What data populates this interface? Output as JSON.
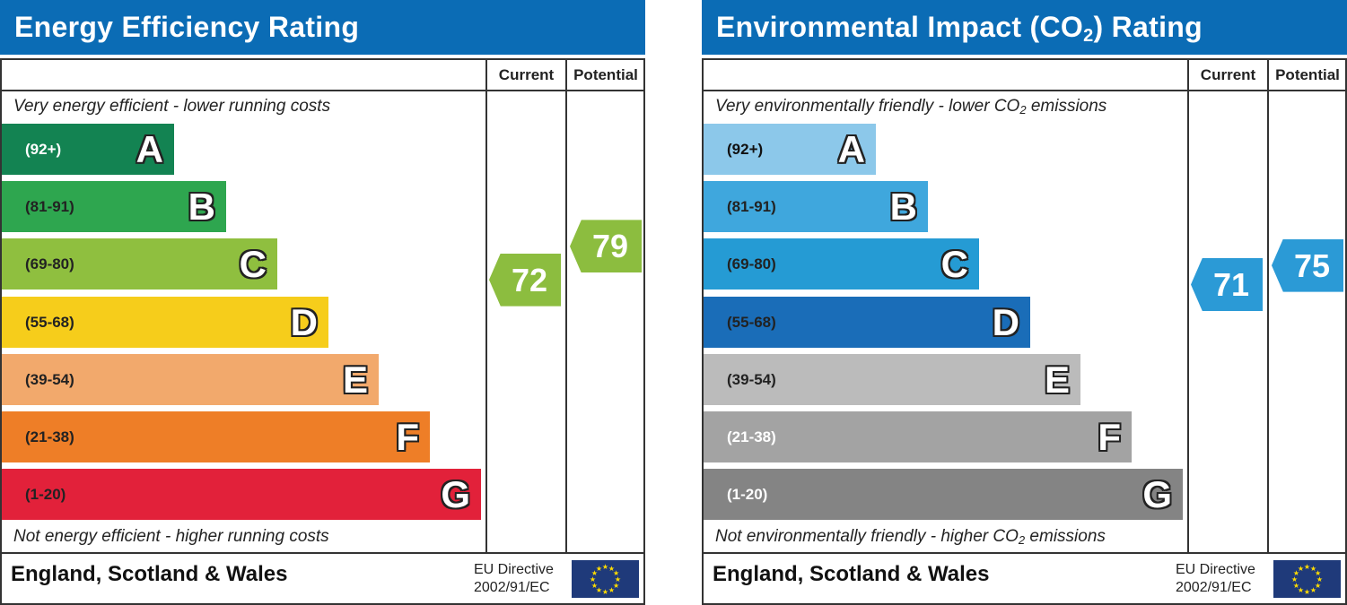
{
  "chart_data": [
    {
      "type": "bar",
      "title": "Energy Efficiency Rating",
      "columns": [
        "Current",
        "Potential"
      ],
      "top_note": "Very energy efficient - lower running costs",
      "bottom_note": "Not energy efficient - higher running costs",
      "bands": [
        {
          "range": "(92+)",
          "letter": "A",
          "color": "#138352",
          "text_color": "#ffffff"
        },
        {
          "range": "(81-91)",
          "letter": "B",
          "color": "#2ea64f",
          "text_color": "#222222"
        },
        {
          "range": "(69-80)",
          "letter": "C",
          "color": "#8fbf3f",
          "text_color": "#222222"
        },
        {
          "range": "(55-68)",
          "letter": "D",
          "color": "#f6cd1b",
          "text_color": "#222222"
        },
        {
          "range": "(39-54)",
          "letter": "E",
          "color": "#f2a96c",
          "text_color": "#222222"
        },
        {
          "range": "(21-38)",
          "letter": "F",
          "color": "#ee7e27",
          "text_color": "#222222"
        },
        {
          "range": "(1-20)",
          "letter": "G",
          "color": "#e2213a",
          "text_color": "#222222"
        }
      ],
      "current": {
        "value": 72,
        "color": "#8cbd3f"
      },
      "potential": {
        "value": 79,
        "color": "#8cbd3f"
      },
      "footer": {
        "country": "England, Scotland & Wales",
        "directive_line1": "EU Directive",
        "directive_line2": "2002/91/EC"
      }
    },
    {
      "type": "bar",
      "title": "Environmental Impact (CO2) Rating",
      "columns": [
        "Current",
        "Potential"
      ],
      "top_note": "Very environmentally friendly - lower CO2 emissions",
      "bottom_note": "Not environmentally friendly - higher CO2 emissions",
      "bands": [
        {
          "range": "(92+)",
          "letter": "A",
          "color": "#8cc8ea",
          "text_color": "#111111"
        },
        {
          "range": "(81-91)",
          "letter": "B",
          "color": "#3fa7dd",
          "text_color": "#222222"
        },
        {
          "range": "(69-80)",
          "letter": "C",
          "color": "#259bd4",
          "text_color": "#222222"
        },
        {
          "range": "(55-68)",
          "letter": "D",
          "color": "#1a6db8",
          "text_color": "#222222"
        },
        {
          "range": "(39-54)",
          "letter": "E",
          "color": "#bbbbbb",
          "text_color": "#222222"
        },
        {
          "range": "(21-38)",
          "letter": "F",
          "color": "#a3a3a3",
          "text_color": "#ffffff"
        },
        {
          "range": "(1-20)",
          "letter": "G",
          "color": "#848484",
          "text_color": "#ffffff"
        }
      ],
      "current": {
        "value": 71,
        "color": "#2b9ad6"
      },
      "potential": {
        "value": 75,
        "color": "#2b9ad6"
      },
      "footer": {
        "country": "England, Scotland & Wales",
        "directive_line1": "EU Directive",
        "directive_line2": "2002/91/EC"
      }
    }
  ]
}
